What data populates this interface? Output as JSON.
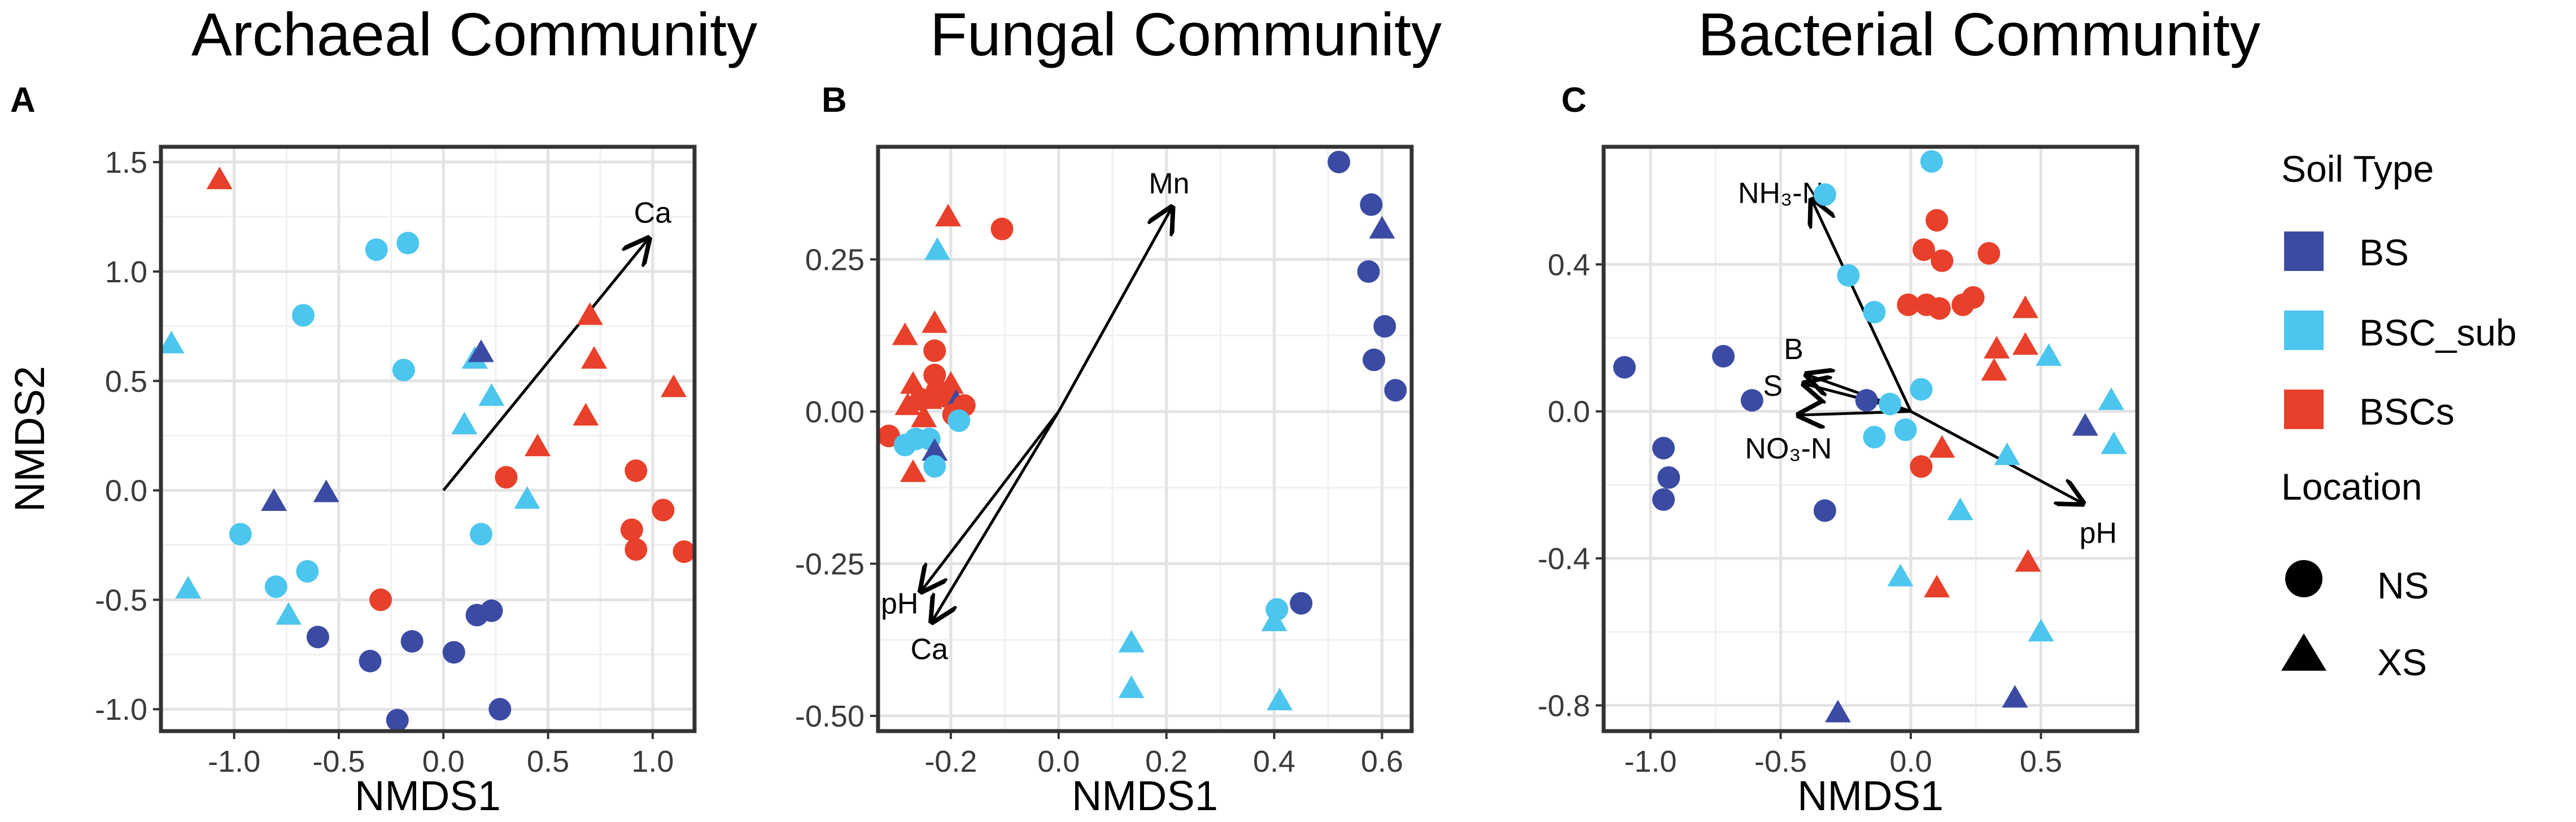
{
  "legend": {
    "soil_type_title": "Soil Type",
    "location_title": "Location",
    "soil_types": [
      {
        "label": "BS",
        "color": "#3b4ba3"
      },
      {
        "label": "BSC_sub",
        "color": "#4cc6ee"
      },
      {
        "label": "BSCs",
        "color": "#e8402a"
      }
    ],
    "locations": [
      {
        "label": "NS",
        "shape": "circle"
      },
      {
        "label": "XS",
        "shape": "triangle"
      }
    ]
  },
  "chart_data": [
    {
      "type": "scatter",
      "panel_label": "A",
      "title": "Archaeal Community",
      "xlabel": "NMDS1",
      "ylabel": "NMDS2",
      "xlim": [
        -1.35,
        1.2
      ],
      "ylim": [
        -1.1,
        1.57
      ],
      "xticks": [
        -1.0,
        -0.5,
        0.0,
        0.5,
        1.0
      ],
      "xtick_labels": [
        "-1.0",
        "-0.5",
        "0.0",
        "0.5",
        "1.0"
      ],
      "yticks": [
        -1.0,
        -0.5,
        0.0,
        0.5,
        1.0,
        1.5
      ],
      "ytick_labels": [
        "-1.0",
        "-0.5",
        "0.0",
        "0.5",
        "1.0",
        "1.5"
      ],
      "vectors": [
        {
          "label": "Ca",
          "x0": 0,
          "y0": 0,
          "x1": 0.98,
          "y1": 1.15,
          "lx": 1.0,
          "ly": 1.27
        }
      ],
      "points": [
        {
          "x": -1.07,
          "y": 1.42,
          "g": "BSCs",
          "s": "XS"
        },
        {
          "x": -0.32,
          "y": 1.1,
          "g": "BSC_sub",
          "s": "NS"
        },
        {
          "x": -0.17,
          "y": 1.13,
          "g": "BSC_sub",
          "s": "NS"
        },
        {
          "x": -0.67,
          "y": 0.8,
          "g": "BSC_sub",
          "s": "NS"
        },
        {
          "x": -0.19,
          "y": 0.55,
          "g": "BSC_sub",
          "s": "NS"
        },
        {
          "x": -1.3,
          "y": 0.67,
          "g": "BSC_sub",
          "s": "XS"
        },
        {
          "x": 0.15,
          "y": 0.6,
          "g": "BSC_sub",
          "s": "XS"
        },
        {
          "x": 0.18,
          "y": 0.63,
          "g": "BS",
          "s": "XS"
        },
        {
          "x": 0.1,
          "y": 0.3,
          "g": "BSC_sub",
          "s": "XS"
        },
        {
          "x": 0.23,
          "y": 0.43,
          "g": "BSC_sub",
          "s": "XS"
        },
        {
          "x": 0.7,
          "y": 0.8,
          "g": "BSCs",
          "s": "XS"
        },
        {
          "x": 0.72,
          "y": 0.6,
          "g": "BSCs",
          "s": "XS"
        },
        {
          "x": 0.68,
          "y": 0.34,
          "g": "BSCs",
          "s": "XS"
        },
        {
          "x": 1.1,
          "y": 0.47,
          "g": "BSCs",
          "s": "XS"
        },
        {
          "x": 0.45,
          "y": 0.2,
          "g": "BSCs",
          "s": "XS"
        },
        {
          "x": 0.3,
          "y": 0.06,
          "g": "BSCs",
          "s": "NS"
        },
        {
          "x": 0.92,
          "y": 0.09,
          "g": "BSCs",
          "s": "NS"
        },
        {
          "x": 1.05,
          "y": -0.09,
          "g": "BSCs",
          "s": "NS"
        },
        {
          "x": 0.9,
          "y": -0.18,
          "g": "BSCs",
          "s": "NS"
        },
        {
          "x": 0.92,
          "y": -0.27,
          "g": "BSCs",
          "s": "NS"
        },
        {
          "x": 1.15,
          "y": -0.28,
          "g": "BSCs",
          "s": "NS"
        },
        {
          "x": 0.4,
          "y": -0.04,
          "g": "BSC_sub",
          "s": "XS"
        },
        {
          "x": 0.18,
          "y": -0.2,
          "g": "BSC_sub",
          "s": "NS"
        },
        {
          "x": -0.81,
          "y": -0.05,
          "g": "BS",
          "s": "XS"
        },
        {
          "x": -0.56,
          "y": -0.01,
          "g": "BS",
          "s": "XS"
        },
        {
          "x": -0.97,
          "y": -0.2,
          "g": "BSC_sub",
          "s": "NS"
        },
        {
          "x": -0.65,
          "y": -0.37,
          "g": "BSC_sub",
          "s": "NS"
        },
        {
          "x": -1.22,
          "y": -0.45,
          "g": "BSC_sub",
          "s": "XS"
        },
        {
          "x": -0.8,
          "y": -0.44,
          "g": "BSC_sub",
          "s": "NS"
        },
        {
          "x": -0.74,
          "y": -0.57,
          "g": "BSC_sub",
          "s": "XS"
        },
        {
          "x": -0.6,
          "y": -0.67,
          "g": "BS",
          "s": "NS"
        },
        {
          "x": -0.3,
          "y": -0.5,
          "g": "BSCs",
          "s": "NS"
        },
        {
          "x": -0.35,
          "y": -0.78,
          "g": "BS",
          "s": "NS"
        },
        {
          "x": -0.15,
          "y": -0.69,
          "g": "BS",
          "s": "NS"
        },
        {
          "x": 0.05,
          "y": -0.74,
          "g": "BS",
          "s": "NS"
        },
        {
          "x": 0.16,
          "y": -0.57,
          "g": "BS",
          "s": "NS"
        },
        {
          "x": 0.23,
          "y": -0.55,
          "g": "BS",
          "s": "NS"
        },
        {
          "x": -0.22,
          "y": -1.05,
          "g": "BS",
          "s": "NS"
        },
        {
          "x": 0.27,
          "y": -1.0,
          "g": "BS",
          "s": "NS"
        }
      ]
    },
    {
      "type": "scatter",
      "panel_label": "B",
      "title": "Fungal Community",
      "xlabel": "NMDS1",
      "ylabel": "",
      "xlim": [
        -0.335,
        0.655
      ],
      "ylim": [
        -0.525,
        0.435
      ],
      "xticks": [
        -0.2,
        0.0,
        0.2,
        0.4,
        0.6
      ],
      "xtick_labels": [
        "-0.2",
        "0.0",
        "0.2",
        "0.4",
        "0.6"
      ],
      "yticks": [
        -0.5,
        -0.25,
        0.0,
        0.25
      ],
      "ytick_labels": [
        "-0.50",
        "-0.25",
        "0.00",
        "0.25"
      ],
      "vectors": [
        {
          "label": "Mn",
          "x0": 0,
          "y0": 0,
          "x1": 0.21,
          "y1": 0.335,
          "lx": 0.205,
          "ly": 0.375
        },
        {
          "label": "pH",
          "x0": 0,
          "y0": 0,
          "x1": -0.255,
          "y1": -0.295,
          "lx": -0.295,
          "ly": -0.315
        },
        {
          "label": "Ca",
          "x0": 0,
          "y0": 0,
          "x1": -0.235,
          "y1": -0.345,
          "lx": -0.24,
          "ly": -0.39
        }
      ],
      "points": [
        {
          "x": 0.52,
          "y": 0.41,
          "g": "BS",
          "s": "NS"
        },
        {
          "x": 0.58,
          "y": 0.34,
          "g": "BS",
          "s": "NS"
        },
        {
          "x": 0.6,
          "y": 0.3,
          "g": "BS",
          "s": "XS"
        },
        {
          "x": 0.575,
          "y": 0.23,
          "g": "BS",
          "s": "NS"
        },
        {
          "x": 0.605,
          "y": 0.14,
          "g": "BS",
          "s": "NS"
        },
        {
          "x": 0.585,
          "y": 0.085,
          "g": "BS",
          "s": "NS"
        },
        {
          "x": 0.625,
          "y": 0.035,
          "g": "BS",
          "s": "NS"
        },
        {
          "x": -0.205,
          "y": 0.32,
          "g": "BSCs",
          "s": "XS"
        },
        {
          "x": -0.105,
          "y": 0.3,
          "g": "BSCs",
          "s": "NS"
        },
        {
          "x": -0.225,
          "y": 0.265,
          "g": "BSC_sub",
          "s": "XS"
        },
        {
          "x": -0.285,
          "y": 0.125,
          "g": "BSCs",
          "s": "XS"
        },
        {
          "x": -0.23,
          "y": 0.145,
          "g": "BSCs",
          "s": "XS"
        },
        {
          "x": -0.23,
          "y": 0.1,
          "g": "BSCs",
          "s": "NS"
        },
        {
          "x": -0.23,
          "y": 0.06,
          "g": "BSCs",
          "s": "NS"
        },
        {
          "x": -0.27,
          "y": 0.045,
          "g": "BSCs",
          "s": "XS"
        },
        {
          "x": -0.2,
          "y": 0.045,
          "g": "BSCs",
          "s": "XS"
        },
        {
          "x": -0.28,
          "y": 0.01,
          "g": "BSCs",
          "s": "XS"
        },
        {
          "x": -0.255,
          "y": 0.02,
          "g": "BSCs",
          "s": "NS"
        },
        {
          "x": -0.24,
          "y": 0.02,
          "g": "BSCs",
          "s": "XS"
        },
        {
          "x": -0.225,
          "y": 0.035,
          "g": "BSCs",
          "s": "NS"
        },
        {
          "x": -0.21,
          "y": 0.025,
          "g": "BSCs",
          "s": "NS"
        },
        {
          "x": -0.19,
          "y": 0.015,
          "g": "BS",
          "s": "XS"
        },
        {
          "x": -0.175,
          "y": 0.01,
          "g": "BSCs",
          "s": "NS"
        },
        {
          "x": -0.25,
          "y": -0.01,
          "g": "BSCs",
          "s": "XS"
        },
        {
          "x": -0.195,
          "y": -0.005,
          "g": "BSCs",
          "s": "NS"
        },
        {
          "x": -0.315,
          "y": -0.04,
          "g": "BSCs",
          "s": "NS"
        },
        {
          "x": -0.285,
          "y": -0.055,
          "g": "BSC_sub",
          "s": "NS"
        },
        {
          "x": -0.265,
          "y": -0.045,
          "g": "BSC_sub",
          "s": "NS"
        },
        {
          "x": -0.24,
          "y": -0.045,
          "g": "BSC_sub",
          "s": "NS"
        },
        {
          "x": -0.23,
          "y": -0.065,
          "g": "BS",
          "s": "XS"
        },
        {
          "x": -0.185,
          "y": -0.015,
          "g": "BSC_sub",
          "s": "NS"
        },
        {
          "x": -0.23,
          "y": -0.09,
          "g": "BSC_sub",
          "s": "NS"
        },
        {
          "x": -0.27,
          "y": -0.1,
          "g": "BSCs",
          "s": "XS"
        },
        {
          "x": 0.45,
          "y": -0.315,
          "g": "BS",
          "s": "NS"
        },
        {
          "x": 0.405,
          "y": -0.325,
          "g": "BSC_sub",
          "s": "NS"
        },
        {
          "x": 0.4,
          "y": -0.345,
          "g": "BSC_sub",
          "s": "XS"
        },
        {
          "x": 0.135,
          "y": -0.38,
          "g": "BSC_sub",
          "s": "XS"
        },
        {
          "x": 0.135,
          "y": -0.455,
          "g": "BSC_sub",
          "s": "XS"
        },
        {
          "x": 0.41,
          "y": -0.475,
          "g": "BSC_sub",
          "s": "XS"
        }
      ]
    },
    {
      "type": "scatter",
      "panel_label": "C",
      "title": "Bacterial Community",
      "xlabel": "NMDS1",
      "ylabel": "",
      "xlim": [
        -1.18,
        0.87
      ],
      "ylim": [
        -0.87,
        0.72
      ],
      "xticks": [
        -1.0,
        -0.5,
        0.0,
        0.5
      ],
      "xtick_labels": [
        "-1.0",
        "-0.5",
        "0.0",
        "0.5"
      ],
      "yticks": [
        -0.8,
        -0.4,
        0.0,
        0.4
      ],
      "ytick_labels": [
        "-0.8",
        "-0.4",
        "0.0",
        "0.4"
      ],
      "vectors": [
        {
          "label": "NH₃-N",
          "x0": 0,
          "y0": 0,
          "x1": -0.38,
          "y1": 0.575,
          "lx": -0.5,
          "ly": 0.595
        },
        {
          "label": "B",
          "x0": 0,
          "y0": 0,
          "x1": -0.4,
          "y1": 0.1,
          "lx": -0.45,
          "ly": 0.17
        },
        {
          "label": "S",
          "x0": 0,
          "y0": 0,
          "x1": -0.41,
          "y1": 0.075,
          "lx": -0.53,
          "ly": 0.07
        },
        {
          "label": "NO₃-N",
          "x0": 0,
          "y0": 0,
          "x1": -0.43,
          "y1": -0.01,
          "lx": -0.47,
          "ly": -0.1
        },
        {
          "label": "pH",
          "x0": 0,
          "y0": 0,
          "x1": 0.66,
          "y1": -0.25,
          "lx": 0.72,
          "ly": -0.33
        }
      ],
      "points": [
        {
          "x": 0.08,
          "y": 0.68,
          "g": "BSC_sub",
          "s": "NS"
        },
        {
          "x": -0.33,
          "y": 0.59,
          "g": "BSC_sub",
          "s": "NS"
        },
        {
          "x": 0.1,
          "y": 0.52,
          "g": "BSCs",
          "s": "NS"
        },
        {
          "x": 0.05,
          "y": 0.44,
          "g": "BSCs",
          "s": "NS"
        },
        {
          "x": 0.12,
          "y": 0.41,
          "g": "BSCs",
          "s": "NS"
        },
        {
          "x": 0.3,
          "y": 0.43,
          "g": "BSCs",
          "s": "NS"
        },
        {
          "x": -0.24,
          "y": 0.37,
          "g": "BSC_sub",
          "s": "NS"
        },
        {
          "x": -0.01,
          "y": 0.29,
          "g": "BSCs",
          "s": "NS"
        },
        {
          "x": 0.11,
          "y": 0.28,
          "g": "BSCs",
          "s": "NS"
        },
        {
          "x": 0.2,
          "y": 0.29,
          "g": "BSCs",
          "s": "NS"
        },
        {
          "x": 0.24,
          "y": 0.31,
          "g": "BSCs",
          "s": "NS"
        },
        {
          "x": 0.06,
          "y": 0.29,
          "g": "BSCs",
          "s": "NS"
        },
        {
          "x": -0.14,
          "y": 0.27,
          "g": "BSC_sub",
          "s": "NS"
        },
        {
          "x": 0.44,
          "y": 0.28,
          "g": "BSCs",
          "s": "XS"
        },
        {
          "x": 0.44,
          "y": 0.18,
          "g": "BSCs",
          "s": "XS"
        },
        {
          "x": 0.33,
          "y": 0.17,
          "g": "BSCs",
          "s": "XS"
        },
        {
          "x": 0.32,
          "y": 0.11,
          "g": "BSCs",
          "s": "XS"
        },
        {
          "x": 0.53,
          "y": 0.15,
          "g": "BSC_sub",
          "s": "XS"
        },
        {
          "x": -1.1,
          "y": 0.12,
          "g": "BS",
          "s": "NS"
        },
        {
          "x": -0.72,
          "y": 0.15,
          "g": "BS",
          "s": "NS"
        },
        {
          "x": -0.61,
          "y": 0.03,
          "g": "BS",
          "s": "NS"
        },
        {
          "x": -0.95,
          "y": -0.1,
          "g": "BS",
          "s": "NS"
        },
        {
          "x": -0.93,
          "y": -0.18,
          "g": "BS",
          "s": "NS"
        },
        {
          "x": -0.95,
          "y": -0.24,
          "g": "BS",
          "s": "NS"
        },
        {
          "x": -0.17,
          "y": 0.03,
          "g": "BS",
          "s": "NS"
        },
        {
          "x": -0.08,
          "y": 0.02,
          "g": "BSC_sub",
          "s": "NS"
        },
        {
          "x": 0.04,
          "y": 0.06,
          "g": "BSC_sub",
          "s": "NS"
        },
        {
          "x": -0.02,
          "y": -0.05,
          "g": "BSC_sub",
          "s": "NS"
        },
        {
          "x": -0.14,
          "y": -0.07,
          "g": "BSC_sub",
          "s": "NS"
        },
        {
          "x": 0.12,
          "y": -0.1,
          "g": "BSCs",
          "s": "XS"
        },
        {
          "x": 0.04,
          "y": -0.15,
          "g": "BSCs",
          "s": "NS"
        },
        {
          "x": 0.37,
          "y": -0.12,
          "g": "BSC_sub",
          "s": "XS"
        },
        {
          "x": 0.67,
          "y": -0.04,
          "g": "BS",
          "s": "XS"
        },
        {
          "x": 0.77,
          "y": 0.03,
          "g": "BSC_sub",
          "s": "XS"
        },
        {
          "x": 0.78,
          "y": -0.09,
          "g": "BSC_sub",
          "s": "XS"
        },
        {
          "x": 0.19,
          "y": -0.27,
          "g": "BSC_sub",
          "s": "XS"
        },
        {
          "x": -0.33,
          "y": -0.27,
          "g": "BS",
          "s": "NS"
        },
        {
          "x": -0.04,
          "y": -0.45,
          "g": "BSC_sub",
          "s": "XS"
        },
        {
          "x": 0.1,
          "y": -0.48,
          "g": "BSCs",
          "s": "XS"
        },
        {
          "x": 0.45,
          "y": -0.41,
          "g": "BSCs",
          "s": "XS"
        },
        {
          "x": 0.5,
          "y": -0.6,
          "g": "BSC_sub",
          "s": "XS"
        },
        {
          "x": 0.4,
          "y": -0.78,
          "g": "BS",
          "s": "XS"
        },
        {
          "x": -0.28,
          "y": -0.82,
          "g": "BS",
          "s": "XS"
        }
      ]
    }
  ]
}
